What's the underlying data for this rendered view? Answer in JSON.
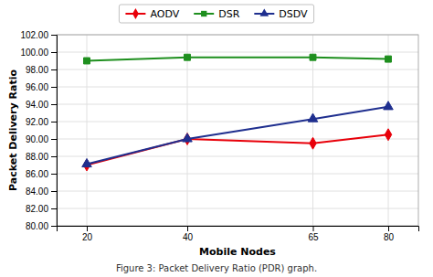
{
  "chart_data": {
    "type": "line",
    "x_label": "Mobile Nodes",
    "y_label": "Packet Delivery Ratio",
    "annotations": [
      "Figure 3: Packet Delivery Ratio (PDR) graph."
    ],
    "x": [
      20,
      40,
      65,
      80
    ],
    "series": [
      {
        "name": "AODV",
        "color": "#e8000a",
        "marker": "diamond",
        "values": [
          87.0,
          90.0,
          89.5,
          90.5
        ]
      },
      {
        "name": "DSR",
        "color": "#1e8f1e",
        "marker": "square",
        "values": [
          99.0,
          99.4,
          99.4,
          99.2
        ]
      },
      {
        "name": "DSDV",
        "color": "#1f2f8f",
        "marker": "triangle",
        "values": [
          87.1,
          90.0,
          92.3,
          93.7
        ]
      }
    ],
    "xlim": [
      14,
      86
    ],
    "xticks": [
      20,
      40,
      65,
      80
    ],
    "ylim": [
      80.0,
      102.0
    ],
    "yticks": [
      {
        "value": 80.0,
        "label": "80.00"
      },
      {
        "value": 82.0,
        "label": "82.00"
      },
      {
        "value": 84.0,
        "label": "84.00"
      },
      {
        "value": 86.0,
        "label": "86.00"
      },
      {
        "value": 88.0,
        "label": "88.00"
      },
      {
        "value": 90.0,
        "label": "90.00"
      },
      {
        "value": 92.0,
        "label": "92.00"
      },
      {
        "value": 94.0,
        "label": "94.00"
      },
      {
        "value": 96.0,
        "label": "96.00"
      },
      {
        "value": 98.0,
        "label": "98.00"
      },
      {
        "value": 100.0,
        "label": "100.00"
      },
      {
        "value": 102.0,
        "label": "102.00"
      }
    ],
    "grid": true,
    "legend": "top"
  }
}
